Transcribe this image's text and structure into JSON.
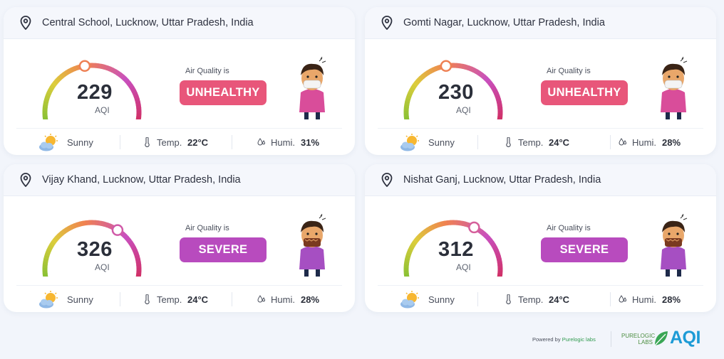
{
  "colors": {
    "unhealthy": "#e8567a",
    "severe": "#b84bbe",
    "aqi_logo": "#1d9bd6",
    "purelogic_green": "#2f9a4e"
  },
  "stations": [
    {
      "location": "Central School, Lucknow, Uttar Pradesh, India",
      "aqi": "229",
      "aqi_unit": "AQI",
      "aqi_fraction": 0.46,
      "air_quality_label": "Air Quality is",
      "status": "UNHEALTHY",
      "status_color": "#e8567a",
      "weather": "Sunny",
      "weather_icon": "sun-cloud-icon",
      "temp_label": "Temp.",
      "temp": "22°C",
      "humidity_label": "Humi.",
      "humidity": "31%"
    },
    {
      "location": "Gomti Nagar, Lucknow, Uttar Pradesh, India",
      "aqi": "230",
      "aqi_unit": "AQI",
      "aqi_fraction": 0.46,
      "air_quality_label": "Air Quality is",
      "status": "UNHEALTHY",
      "status_color": "#e8567a",
      "weather": "Sunny",
      "weather_icon": "sun-cloud-icon",
      "temp_label": "Temp.",
      "temp": "24°C",
      "humidity_label": "Humi.",
      "humidity": "28%"
    },
    {
      "location": "Vijay Khand, Lucknow, Uttar Pradesh, India",
      "aqi": "326",
      "aqi_unit": "AQI",
      "aqi_fraction": 0.65,
      "air_quality_label": "Air Quality is",
      "status": "SEVERE",
      "status_color": "#b84bbe",
      "weather": "Sunny",
      "weather_icon": "sun-cloud-icon",
      "temp_label": "Temp.",
      "temp": "24°C",
      "humidity_label": "Humi.",
      "humidity": "28%"
    },
    {
      "location": "Nishat Ganj, Lucknow, Uttar Pradesh, India",
      "aqi": "312",
      "aqi_unit": "AQI",
      "aqi_fraction": 0.62,
      "air_quality_label": "Air Quality is",
      "status": "SEVERE",
      "status_color": "#b84bbe",
      "weather": "Sunny",
      "weather_icon": "sun-cloud-icon",
      "temp_label": "Temp.",
      "temp": "24°C",
      "humidity_label": "Humi.",
      "humidity": "28%"
    }
  ],
  "footer": {
    "powered_by": "Powered by",
    "powered_brand": "Purelogic labs",
    "logo_line1": "PURELOGIC",
    "logo_line2": "LABS",
    "logo_aqi": "AQI"
  }
}
